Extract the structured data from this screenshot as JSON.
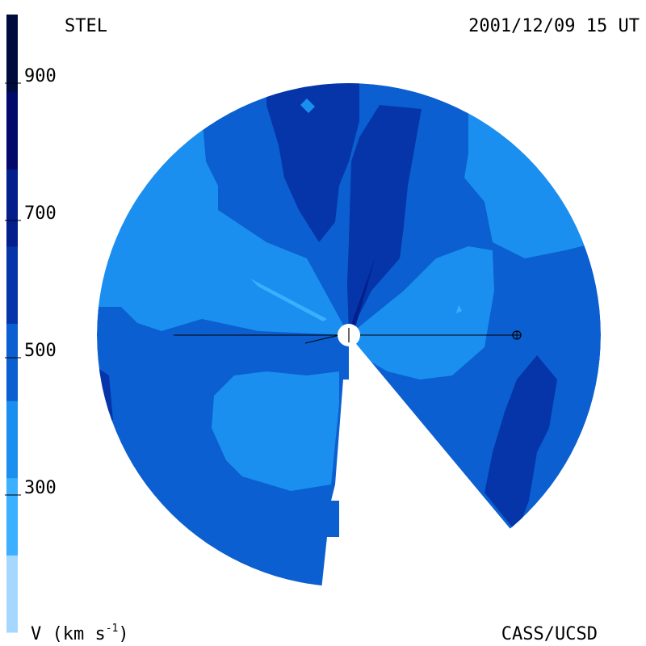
{
  "header": {
    "source": "STEL",
    "datetime": "2001/12/09 15 UT"
  },
  "footer": {
    "credit": "CASS/UCSD",
    "unit_prefix": "V (km s",
    "unit_exp": "-1",
    "unit_suffix": ")"
  },
  "colorbar": {
    "ticks": [
      "900",
      "700",
      "500",
      "300"
    ],
    "tick_values": [
      900,
      700,
      500,
      300
    ],
    "range": [
      100,
      1000
    ],
    "colors": [
      "#a6d8ff",
      "#3ab0ff",
      "#1b8ff0",
      "#0b5fd0",
      "#0535a8",
      "#021f8c",
      "#010a6a",
      "#000b3d"
    ]
  },
  "map": {
    "observer_marker": "earth-symbol",
    "sun_marker": "sun-symbol"
  }
}
